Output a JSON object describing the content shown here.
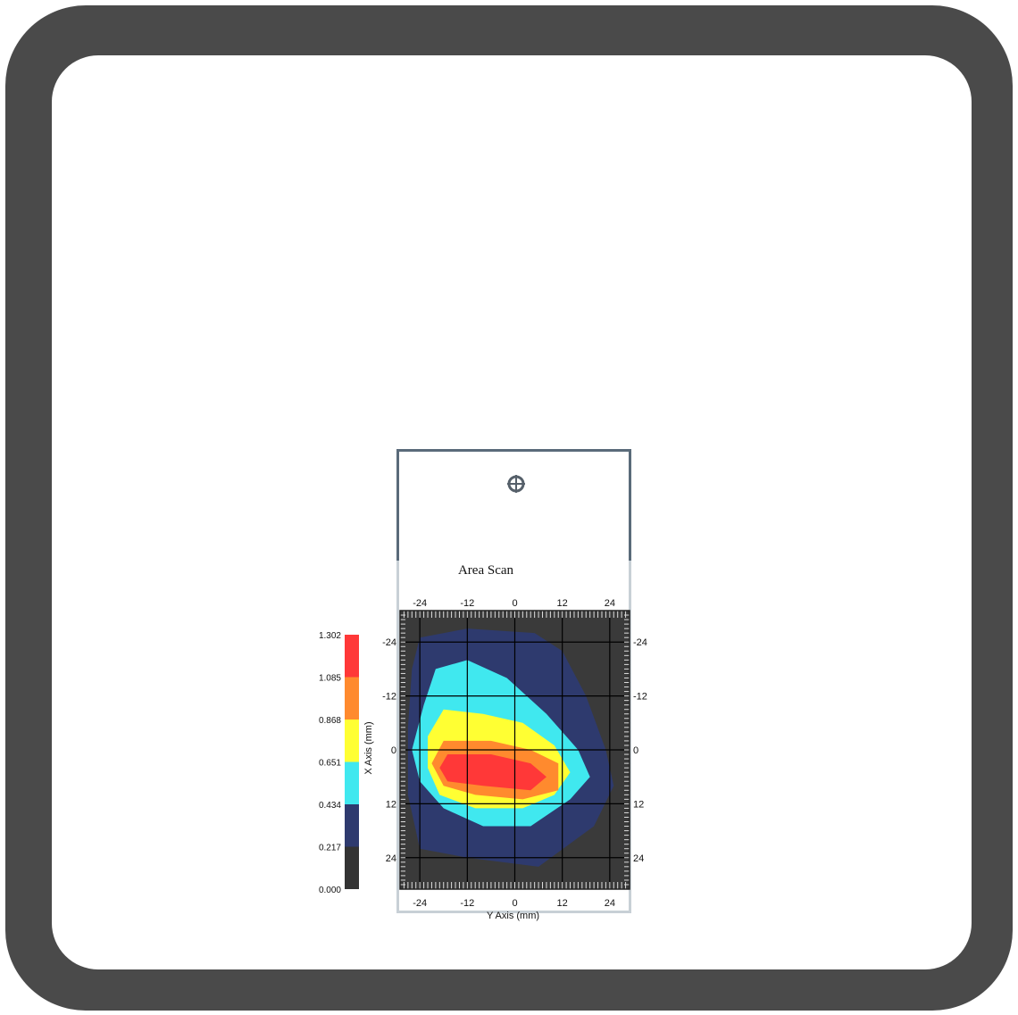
{
  "panel": {
    "title": "Area Scan",
    "crosshair_icon": "crosshair-icon"
  },
  "colors": {
    "frame": "#4a4a4a",
    "background_plot": "#3a3a3a",
    "levels": [
      "#333333",
      "#2e3a6e",
      "#40e8ef",
      "#ffff33",
      "#ff8a2e",
      "#ff3838"
    ]
  },
  "chart_data": {
    "type": "heatmap",
    "title": "Area Scan",
    "xlabel": "Y Axis (mm)",
    "ylabel": "X Axis (mm)",
    "xlim": [
      -29,
      29
    ],
    "ylim": [
      -31,
      31
    ],
    "x_ticks": [
      "-24",
      "-12",
      "0",
      "12",
      "24"
    ],
    "y_ticks": [
      "-24",
      "-12",
      "0",
      "12",
      "24"
    ],
    "colorbar": {
      "levels": [
        "0.000",
        "0.217",
        "0.434",
        "0.651",
        "0.868",
        "1.085",
        "1.302"
      ]
    },
    "grid": true,
    "contours": [
      {
        "level": 0.217,
        "polygon": [
          [
            -24,
            -25
          ],
          [
            -12,
            -27
          ],
          [
            5,
            -26
          ],
          [
            12,
            -22
          ],
          [
            18,
            -12
          ],
          [
            23,
            0
          ],
          [
            25,
            8
          ],
          [
            20,
            17
          ],
          [
            6,
            26
          ],
          [
            -12,
            24
          ],
          [
            -24,
            22
          ],
          [
            -27,
            10
          ],
          [
            -27,
            -5
          ],
          [
            -26,
            -18
          ]
        ]
      },
      {
        "level": 0.434,
        "polygon": [
          [
            -20,
            -18
          ],
          [
            -12,
            -20
          ],
          [
            -2,
            -16
          ],
          [
            8,
            -8
          ],
          [
            16,
            0
          ],
          [
            19,
            6
          ],
          [
            14,
            11
          ],
          [
            4,
            17
          ],
          [
            -8,
            17
          ],
          [
            -18,
            13
          ],
          [
            -24,
            7
          ],
          [
            -26,
            0
          ],
          [
            -23,
            -10
          ]
        ]
      },
      {
        "level": 0.651,
        "polygon": [
          [
            -18,
            -9
          ],
          [
            -8,
            -8
          ],
          [
            2,
            -6
          ],
          [
            10,
            -1
          ],
          [
            14,
            5
          ],
          [
            10,
            10
          ],
          [
            2,
            13
          ],
          [
            -10,
            13
          ],
          [
            -19,
            10
          ],
          [
            -22,
            4
          ],
          [
            -22,
            -3
          ]
        ]
      },
      {
        "level": 0.868,
        "polygon": [
          [
            -18,
            -2
          ],
          [
            -6,
            -2
          ],
          [
            4,
            0
          ],
          [
            11,
            3
          ],
          [
            11,
            9
          ],
          [
            2,
            11
          ],
          [
            -10,
            10
          ],
          [
            -18,
            8
          ],
          [
            -21,
            3
          ]
        ]
      },
      {
        "level": 1.085,
        "polygon": [
          [
            -17,
            1
          ],
          [
            -6,
            1
          ],
          [
            4,
            3
          ],
          [
            8,
            6
          ],
          [
            4,
            9
          ],
          [
            -8,
            8
          ],
          [
            -17,
            7
          ],
          [
            -19,
            4
          ]
        ]
      }
    ]
  }
}
